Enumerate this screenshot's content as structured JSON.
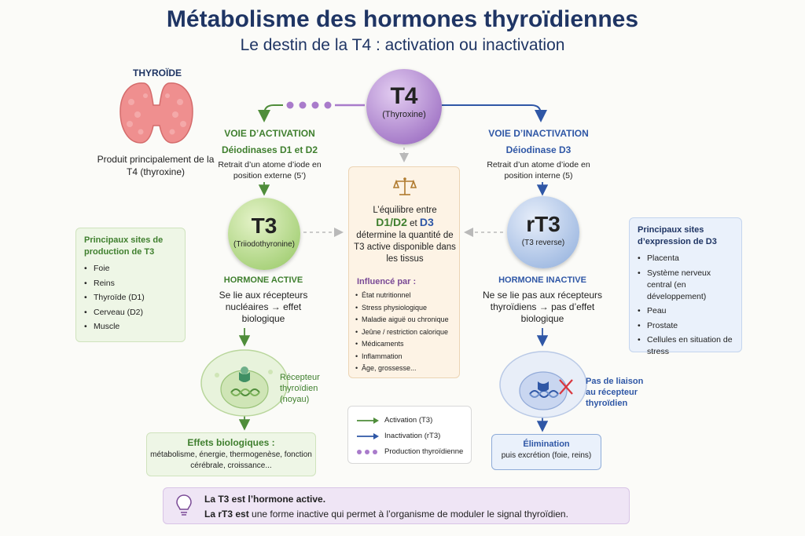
{
  "title": "Métabolisme des hormones thyroïdiennes",
  "subtitle": "Le destin de la T4 : activation ou inactivation",
  "thyroid": {
    "label": "THYROÏDE",
    "caption": "Produit principalement de la T4 (thyroxine)"
  },
  "t4": {
    "name": "T4",
    "full": "(Thyroxine)"
  },
  "activation": {
    "title": "VOIE D’ACTIVATION",
    "enzyme": "Déiodinases D1 et D2",
    "desc": "Retrait d’un atome d’iode en position externe (5’)"
  },
  "inactivation": {
    "title": "VOIE D’INACTIVATION",
    "enzyme": "Déiodinase D3",
    "desc": "Retrait d’un atome d’iode en position interne (5)"
  },
  "t3": {
    "name": "T3",
    "full": "(Triiodothyronine)",
    "role": "HORMONE ACTIVE",
    "role_desc": "Se lie aux récepteurs nucléaires → effet biologique"
  },
  "rt3": {
    "name": "rT3",
    "full": "(T3 reverse)",
    "role": "HORMONE INACTIVE",
    "role_desc": "Ne se lie pas aux récepteurs thyroïdiens → pas d’effet biologique"
  },
  "t3_sites": {
    "heading": "Principaux sites de production de T3",
    "items": [
      "Foie",
      "Reins",
      "Thyroïde (D1)",
      "Cerveau (D2)",
      "Muscle"
    ]
  },
  "d3_sites": {
    "heading": "Principaux sites d’expression de D3",
    "items": [
      "Placenta",
      "Système nerveux central (en développement)",
      "Peau",
      "Prostate",
      "Cellules en situation de stress"
    ]
  },
  "balance": {
    "line1": "L’équilibre entre",
    "enz_a": "D1/D2",
    "and": "et",
    "enz_b": "D3",
    "line3": "détermine la quantité de T3 active disponible dans les tissus",
    "influence_heading": "Influencé par :",
    "influences": [
      "État nutritionnel",
      "Stress physiologique",
      "Maladie aiguë ou chronique",
      "Jeûne / restriction calorique",
      "Médicaments",
      "Inflammation",
      "Âge, grossesse..."
    ]
  },
  "receptor_label": "Récepteur thyroïdien (noyau)",
  "no_binding_label": "Pas de liaison au récepteur thyroïdien",
  "effects": {
    "heading": "Effets biologiques :",
    "text": "métabolisme, énergie, thermogenèse, fonction cérébrale, croissance..."
  },
  "elimination": {
    "heading": "Élimination",
    "text": "puis excrétion (foie, reins)"
  },
  "legend": {
    "activation": "Activation (T3)",
    "inactivation": "Inactivation (rT3)",
    "production": "Production thyroïdienne"
  },
  "note": {
    "line1": "La T3 est l’hormone active.",
    "line2_bold": "La rT3 est",
    "line2_rest": " une forme inactive qui permet à l’organisme de moduler le signal thyroïdien."
  },
  "colors": {
    "green": "#3f7f2e",
    "blue": "#2f57a6",
    "purple": "#7a4a96",
    "navy": "#1f3564"
  }
}
